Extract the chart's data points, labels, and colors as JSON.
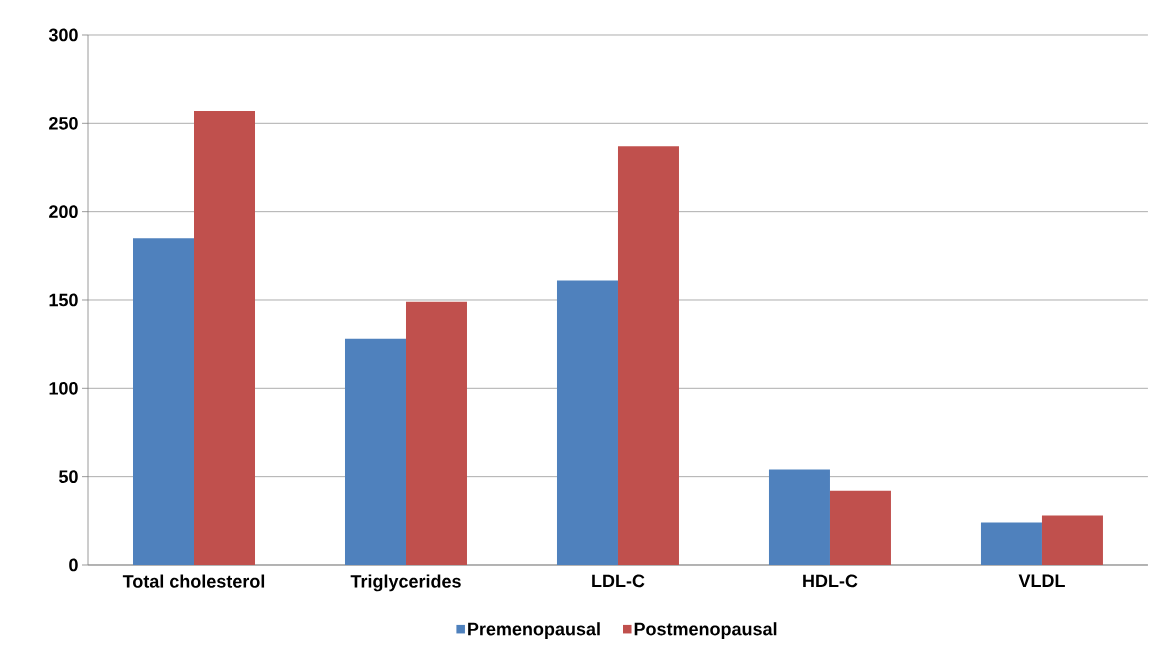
{
  "chart_data": {
    "type": "bar",
    "categories": [
      "Total cholesterol",
      "Triglycerides",
      "LDL-C",
      "HDL-C",
      "VLDL"
    ],
    "series": [
      {
        "name": "Premenopausal",
        "color": "#4f81bd",
        "values": [
          185,
          128,
          161,
          54,
          24
        ]
      },
      {
        "name": "Postmenopausal",
        "color": "#c0504d",
        "values": [
          257,
          149,
          237,
          42,
          28
        ]
      }
    ],
    "ylim": [
      0,
      300
    ],
    "yticks": [
      0,
      50,
      100,
      150,
      200,
      250,
      300
    ],
    "grid": "y",
    "legend": "bottom"
  }
}
